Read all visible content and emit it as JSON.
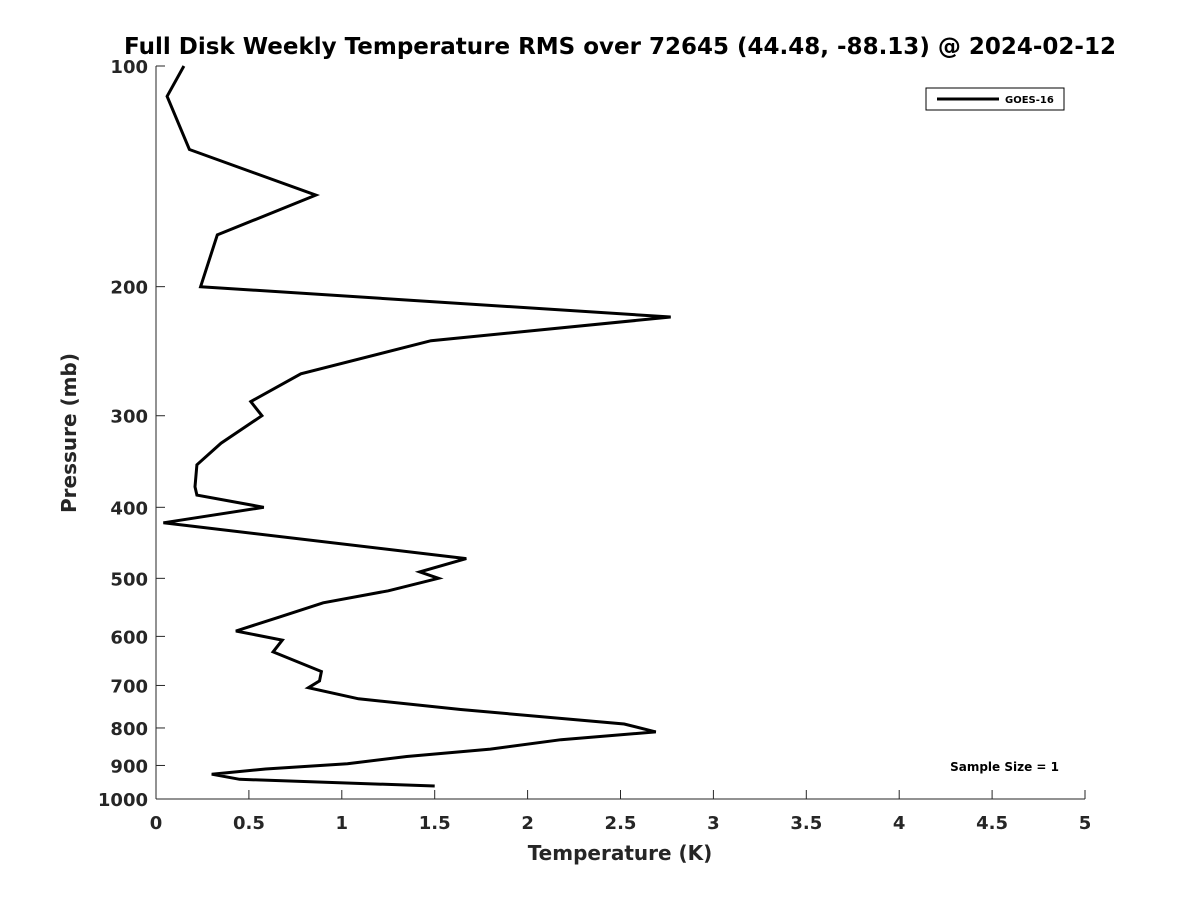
{
  "chart_data": {
    "type": "line",
    "title": "Full Disk Weekly Temperature RMS over 72645 (44.48, -88.13) @ 2024-02-12",
    "xlabel": "Temperature (K)",
    "ylabel": "Pressure (mb)",
    "xlim": [
      0,
      5
    ],
    "ylim": [
      100,
      1000
    ],
    "yscale": "log",
    "y_reversed": true,
    "grid": false,
    "legend_position": "top-right",
    "x_ticks": [
      {
        "value": 0,
        "label": "0"
      },
      {
        "value": 0.5,
        "label": "0.5"
      },
      {
        "value": 1,
        "label": "1"
      },
      {
        "value": 1.5,
        "label": "1.5"
      },
      {
        "value": 2,
        "label": "2"
      },
      {
        "value": 2.5,
        "label": "2.5"
      },
      {
        "value": 3,
        "label": "3"
      },
      {
        "value": 3.5,
        "label": "3.5"
      },
      {
        "value": 4,
        "label": "4"
      },
      {
        "value": 4.5,
        "label": "4.5"
      },
      {
        "value": 5,
        "label": "5"
      }
    ],
    "y_ticks": [
      {
        "value": 100,
        "label": "100"
      },
      {
        "value": 200,
        "label": "200"
      },
      {
        "value": 300,
        "label": "300"
      },
      {
        "value": 400,
        "label": "400"
      },
      {
        "value": 500,
        "label": "500"
      },
      {
        "value": 600,
        "label": "600"
      },
      {
        "value": 700,
        "label": "700"
      },
      {
        "value": 800,
        "label": "800"
      },
      {
        "value": 900,
        "label": "900"
      },
      {
        "value": 1000,
        "label": "1000"
      }
    ],
    "series": [
      {
        "name": "GOES-16",
        "color": "#000000",
        "x": [
          0.15,
          0.06,
          0.18,
          0.86,
          0.33,
          0.24,
          2.77,
          1.48,
          0.78,
          0.51,
          0.57,
          0.35,
          0.22,
          0.21,
          0.22,
          0.58,
          0.04,
          1.67,
          1.42,
          1.52,
          1.25,
          0.9,
          0.66,
          0.43,
          0.68,
          0.63,
          0.89,
          0.88,
          0.82,
          1.09,
          1.64,
          2.52,
          2.69,
          2.18,
          1.8,
          1.35,
          1.03,
          0.59,
          0.3,
          0.45,
          1.5
        ],
        "y": [
          100,
          110,
          130,
          150,
          170,
          200,
          220,
          237,
          263,
          287,
          300,
          327,
          350,
          375,
          385,
          400,
          420,
          470,
          490,
          500,
          520,
          540,
          565,
          590,
          607,
          630,
          670,
          690,
          705,
          730,
          755,
          790,
          810,
          830,
          855,
          875,
          895,
          910,
          925,
          940,
          960
        ]
      }
    ],
    "annotations": [
      {
        "text": "Sample Size = 1",
        "position": "bottom-right"
      }
    ]
  }
}
